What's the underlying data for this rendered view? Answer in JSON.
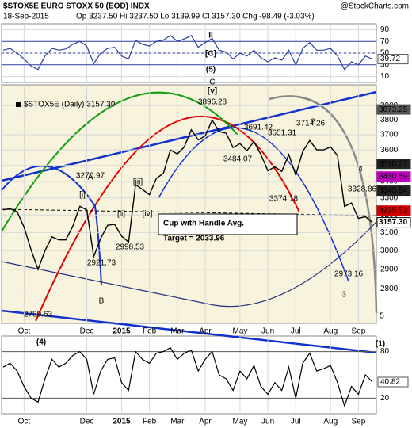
{
  "header": {
    "title": "$STOX5E EURO STOXX 50 (EOD) INDX",
    "source": "@StockCharts.com",
    "date": "18-Sep-2015",
    "quote": "Op 3237.50 Hi 3237.50 Lo 3139.99 Cl 3157.30 Chg -98.49 (-3.03%)"
  },
  "chart_data": [
    {
      "type": "line",
      "color": "#2a3f9e",
      "ylim": [
        0,
        100
      ],
      "yticks": [
        10,
        30,
        50,
        70,
        90
      ],
      "categories": [
        null,
        null,
        null,
        "Oct",
        null,
        null,
        null,
        null,
        null,
        null,
        null,
        null,
        "Dec",
        null,
        null,
        null,
        null,
        "2015",
        null,
        null,
        null,
        "Feb",
        null,
        null,
        null,
        "Mar",
        null,
        null,
        null,
        "Apr",
        null,
        null,
        null,
        null,
        "May",
        null,
        null,
        null,
        "Jun",
        null,
        null,
        null,
        "Jul",
        null,
        null,
        null,
        null,
        "Aug",
        null,
        null,
        null,
        "Sep",
        null,
        null
      ],
      "values": [
        55,
        58,
        50,
        40,
        28,
        22,
        45,
        58,
        55,
        57,
        65,
        70,
        62,
        32,
        50,
        58,
        60,
        45,
        40,
        72,
        65,
        62,
        70,
        72,
        80,
        70,
        74,
        80,
        60,
        68,
        75,
        55,
        52,
        40,
        50,
        45,
        55,
        42,
        35,
        42,
        38,
        55,
        30,
        58,
        68,
        55,
        55,
        58,
        45,
        22,
        35,
        30,
        45,
        39.72
      ],
      "last_label": 39.72
    },
    {
      "type": "line",
      "color": "#000000",
      "log_scale": true,
      "ylim": [
        2630,
        4050
      ],
      "yticks": [
        2800,
        2900,
        3000,
        3100,
        3200,
        3300,
        3400,
        3500,
        3600,
        3700,
        3800,
        3900
      ],
      "legend": "$STOX5E (Daily) 3157.30",
      "categories": [
        null,
        null,
        null,
        "Oct",
        null,
        null,
        null,
        null,
        null,
        null,
        null,
        null,
        "Dec",
        null,
        null,
        null,
        null,
        "2015",
        null,
        null,
        null,
        "Feb",
        null,
        null,
        null,
        "Mar",
        null,
        null,
        null,
        "Apr",
        null,
        null,
        null,
        null,
        "May",
        null,
        null,
        null,
        "Jun",
        null,
        null,
        null,
        "Jul",
        null,
        null,
        null,
        null,
        "Aug",
        null,
        null,
        null,
        "Sep",
        null,
        null
      ],
      "values": [
        3230,
        3236,
        3219,
        3130,
        3005,
        2900,
        3000,
        3076,
        3059,
        3059,
        3135,
        3250,
        3230,
        2968,
        3067,
        3141,
        3146,
        3080,
        3047,
        3380,
        3351,
        3320,
        3420,
        3450,
        3599,
        3574,
        3620,
        3733,
        3666,
        3692,
        3800,
        3721,
        3710,
        3615,
        3641,
        3595,
        3655,
        3570,
        3467,
        3491,
        3463,
        3570,
        3440,
        3590,
        3662,
        3600,
        3600,
        3620,
        3563,
        3250,
        3270,
        3180,
        3190,
        3157.3
      ],
      "price_labels": [
        3873.25,
        3510.27,
        3430.59,
        3343.94,
        3225.52,
        {
          "value": 3157.3,
          "label": "3157.30"
        }
      ],
      "price_label_colors": [
        "#555555",
        "#222222",
        "#c000c0",
        "#222222",
        "#d00000",
        "#000000"
      ],
      "annotations": [
        "II",
        "[C]",
        "(5)",
        "C",
        "[v]",
        "3896.28",
        "3691.42",
        "3714.26",
        "3651.31",
        "2",
        "3484.07",
        "3374.18",
        "3328.86",
        "4",
        "3270.97",
        "A",
        "[i]",
        "[iii]",
        "[ii]",
        "[iv]",
        "2921.73",
        "B",
        "2998.53",
        "2789.63",
        "2973.16",
        "3",
        "5"
      ],
      "callout": [
        "Cup with Handle Avg.",
        "Target = 2033.96"
      ]
    },
    {
      "type": "line",
      "color": "#000000",
      "ylim": [
        0,
        100
      ],
      "yticks": [
        20,
        80
      ],
      "categories": [
        null,
        null,
        null,
        "Oct",
        null,
        null,
        null,
        null,
        null,
        null,
        null,
        null,
        "Dec",
        null,
        null,
        null,
        null,
        "2015",
        null,
        null,
        null,
        "Feb",
        null,
        null,
        null,
        "Mar",
        null,
        null,
        null,
        "Apr",
        null,
        null,
        null,
        null,
        "May",
        null,
        null,
        null,
        "Jun",
        null,
        null,
        null,
        "Jul",
        null,
        null,
        null,
        null,
        "Aug",
        null,
        null,
        null,
        "Sep",
        null,
        null
      ],
      "values": [
        60,
        65,
        55,
        35,
        20,
        15,
        45,
        70,
        60,
        65,
        75,
        80,
        70,
        25,
        55,
        70,
        72,
        40,
        30,
        80,
        70,
        65,
        78,
        80,
        85,
        70,
        78,
        82,
        55,
        70,
        80,
        50,
        45,
        30,
        55,
        45,
        62,
        35,
        25,
        40,
        30,
        60,
        20,
        65,
        78,
        55,
        58,
        62,
        40,
        10,
        35,
        25,
        50,
        40.82
      ],
      "last_label": 40.82,
      "annotations": [
        "(4)",
        "(1)"
      ]
    }
  ]
}
